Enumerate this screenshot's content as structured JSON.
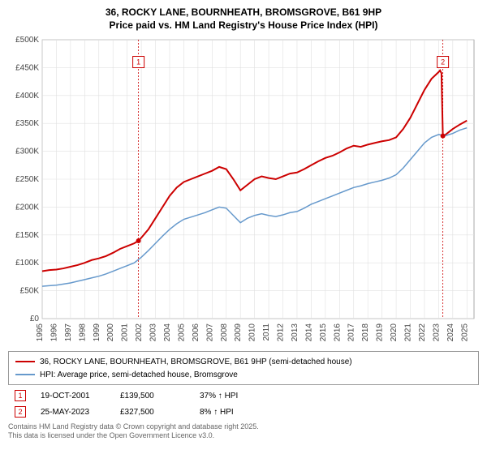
{
  "title_line1": "36, ROCKY LANE, BOURNHEATH, BROMSGROVE, B61 9HP",
  "title_line2": "Price paid vs. HM Land Registry's House Price Index (HPI)",
  "chart": {
    "type": "line",
    "background_color": "#ffffff",
    "plot_bg": "#ffffff",
    "grid_color": "#e0e0e0",
    "axis_color": "#555555",
    "label_fontsize": 10,
    "x": {
      "min": 1995,
      "max": 2025.5,
      "ticks": [
        1995,
        1996,
        1997,
        1998,
        1999,
        2000,
        2001,
        2002,
        2003,
        2004,
        2005,
        2006,
        2007,
        2008,
        2009,
        2010,
        2011,
        2012,
        2013,
        2014,
        2015,
        2016,
        2017,
        2018,
        2019,
        2020,
        2021,
        2022,
        2023,
        2024,
        2025
      ]
    },
    "y": {
      "min": 0,
      "max": 500000,
      "ticks": [
        0,
        50000,
        100000,
        150000,
        200000,
        250000,
        300000,
        350000,
        400000,
        450000,
        500000
      ],
      "tick_labels": [
        "£0",
        "£50K",
        "£100K",
        "£150K",
        "£200K",
        "£250K",
        "£300K",
        "£350K",
        "£400K",
        "£450K",
        "£500K"
      ]
    },
    "series": [
      {
        "name": "property",
        "label": "36, ROCKY LANE, BOURNHEATH, BROMSGROVE, B61 9HP (semi-detached house)",
        "color": "#cc0000",
        "width": 2,
        "data": [
          [
            1995,
            85000
          ],
          [
            1995.5,
            87000
          ],
          [
            1996,
            88000
          ],
          [
            1996.5,
            90000
          ],
          [
            1997,
            93000
          ],
          [
            1997.5,
            96000
          ],
          [
            1998,
            100000
          ],
          [
            1998.5,
            105000
          ],
          [
            1999,
            108000
          ],
          [
            1999.5,
            112000
          ],
          [
            2000,
            118000
          ],
          [
            2000.5,
            125000
          ],
          [
            2001,
            130000
          ],
          [
            2001.5,
            135000
          ],
          [
            2001.8,
            139500
          ],
          [
            2002,
            145000
          ],
          [
            2002.5,
            160000
          ],
          [
            2003,
            180000
          ],
          [
            2003.5,
            200000
          ],
          [
            2004,
            220000
          ],
          [
            2004.5,
            235000
          ],
          [
            2005,
            245000
          ],
          [
            2005.5,
            250000
          ],
          [
            2006,
            255000
          ],
          [
            2006.5,
            260000
          ],
          [
            2007,
            265000
          ],
          [
            2007.5,
            272000
          ],
          [
            2008,
            268000
          ],
          [
            2008.5,
            250000
          ],
          [
            2009,
            230000
          ],
          [
            2009.5,
            240000
          ],
          [
            2010,
            250000
          ],
          [
            2010.5,
            255000
          ],
          [
            2011,
            252000
          ],
          [
            2011.5,
            250000
          ],
          [
            2012,
            255000
          ],
          [
            2012.5,
            260000
          ],
          [
            2013,
            262000
          ],
          [
            2013.5,
            268000
          ],
          [
            2014,
            275000
          ],
          [
            2014.5,
            282000
          ],
          [
            2015,
            288000
          ],
          [
            2015.5,
            292000
          ],
          [
            2016,
            298000
          ],
          [
            2016.5,
            305000
          ],
          [
            2017,
            310000
          ],
          [
            2017.5,
            308000
          ],
          [
            2018,
            312000
          ],
          [
            2018.5,
            315000
          ],
          [
            2019,
            318000
          ],
          [
            2019.5,
            320000
          ],
          [
            2020,
            325000
          ],
          [
            2020.5,
            340000
          ],
          [
            2021,
            360000
          ],
          [
            2021.5,
            385000
          ],
          [
            2022,
            410000
          ],
          [
            2022.5,
            430000
          ],
          [
            2023,
            442000
          ],
          [
            2023.1,
            445000
          ],
          [
            2023.2,
            440000
          ],
          [
            2023.3,
            327500
          ],
          [
            2023.5,
            330000
          ],
          [
            2024,
            340000
          ],
          [
            2024.5,
            348000
          ],
          [
            2025,
            355000
          ]
        ]
      },
      {
        "name": "hpi",
        "label": "HPI: Average price, semi-detached house, Bromsgrove",
        "color": "#6699cc",
        "width": 1.5,
        "data": [
          [
            1995,
            58000
          ],
          [
            1995.5,
            59000
          ],
          [
            1996,
            60000
          ],
          [
            1996.5,
            62000
          ],
          [
            1997,
            64000
          ],
          [
            1997.5,
            67000
          ],
          [
            1998,
            70000
          ],
          [
            1998.5,
            73000
          ],
          [
            1999,
            76000
          ],
          [
            1999.5,
            80000
          ],
          [
            2000,
            85000
          ],
          [
            2000.5,
            90000
          ],
          [
            2001,
            95000
          ],
          [
            2001.5,
            100000
          ],
          [
            2002,
            110000
          ],
          [
            2002.5,
            122000
          ],
          [
            2003,
            135000
          ],
          [
            2003.5,
            148000
          ],
          [
            2004,
            160000
          ],
          [
            2004.5,
            170000
          ],
          [
            2005,
            178000
          ],
          [
            2005.5,
            182000
          ],
          [
            2006,
            186000
          ],
          [
            2006.5,
            190000
          ],
          [
            2007,
            195000
          ],
          [
            2007.5,
            200000
          ],
          [
            2008,
            198000
          ],
          [
            2008.5,
            185000
          ],
          [
            2009,
            172000
          ],
          [
            2009.5,
            180000
          ],
          [
            2010,
            185000
          ],
          [
            2010.5,
            188000
          ],
          [
            2011,
            185000
          ],
          [
            2011.5,
            183000
          ],
          [
            2012,
            186000
          ],
          [
            2012.5,
            190000
          ],
          [
            2013,
            192000
          ],
          [
            2013.5,
            198000
          ],
          [
            2014,
            205000
          ],
          [
            2014.5,
            210000
          ],
          [
            2015,
            215000
          ],
          [
            2015.5,
            220000
          ],
          [
            2016,
            225000
          ],
          [
            2016.5,
            230000
          ],
          [
            2017,
            235000
          ],
          [
            2017.5,
            238000
          ],
          [
            2018,
            242000
          ],
          [
            2018.5,
            245000
          ],
          [
            2019,
            248000
          ],
          [
            2019.5,
            252000
          ],
          [
            2020,
            258000
          ],
          [
            2020.5,
            270000
          ],
          [
            2021,
            285000
          ],
          [
            2021.5,
            300000
          ],
          [
            2022,
            315000
          ],
          [
            2022.5,
            325000
          ],
          [
            2023,
            330000
          ],
          [
            2023.5,
            328000
          ],
          [
            2024,
            332000
          ],
          [
            2024.5,
            338000
          ],
          [
            2025,
            342000
          ]
        ]
      }
    ],
    "markers": [
      {
        "n": "1",
        "x": 2001.8,
        "y": 460000,
        "color": "#cc0000",
        "date": "19-OCT-2001",
        "price": "£139,500",
        "delta": "37% ↑ HPI",
        "dot_y": 139500
      },
      {
        "n": "2",
        "x": 2023.3,
        "y": 460000,
        "color": "#cc0000",
        "date": "25-MAY-2023",
        "price": "£327,500",
        "delta": "8% ↑ HPI",
        "dot_y": 327500
      }
    ]
  },
  "footer_line1": "Contains HM Land Registry data © Crown copyright and database right 2025.",
  "footer_line2": "This data is licensed under the Open Government Licence v3.0."
}
